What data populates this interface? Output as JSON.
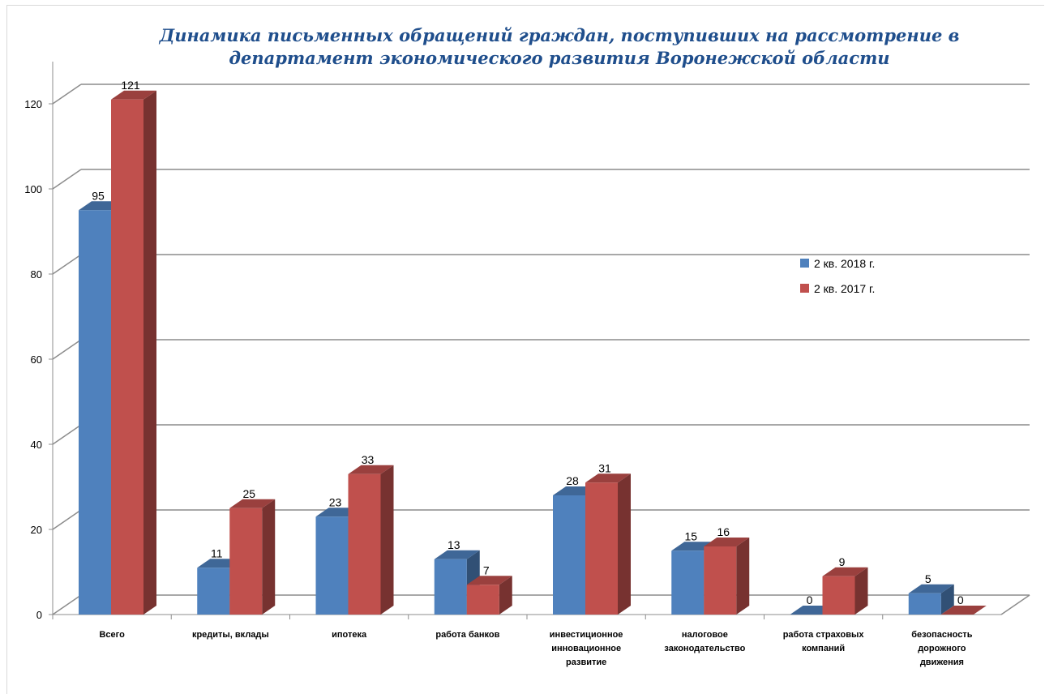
{
  "chart_data": {
    "type": "bar",
    "title_line1": "Динамика письменных обращений граждан, поступивших на рассмотрение в",
    "title_line2": "департамент экономического развития Воронежской области",
    "categories": [
      [
        "Всего"
      ],
      [
        "кредиты, вклады"
      ],
      [
        "ипотека"
      ],
      [
        "работа банков"
      ],
      [
        "инвестиционное",
        "инновационное",
        "развитие"
      ],
      [
        "налоговое",
        "законодательство"
      ],
      [
        "работа страховых",
        "компаний"
      ],
      [
        "безопасность",
        "дорожного",
        "движения"
      ]
    ],
    "series": [
      {
        "name": "2 кв. 2018 г.",
        "color": "#4f81bd",
        "values": [
          95,
          11,
          23,
          13,
          28,
          15,
          0,
          5
        ]
      },
      {
        "name": "2 кв. 2017 г.",
        "color": "#c0504d",
        "values": [
          121,
          25,
          33,
          7,
          31,
          16,
          9,
          0
        ]
      }
    ],
    "ylim": [
      0,
      120
    ],
    "yticks": [
      0,
      20,
      40,
      60,
      80,
      100,
      120
    ],
    "grid": true,
    "legend_position": "right",
    "style": "3d-column"
  }
}
